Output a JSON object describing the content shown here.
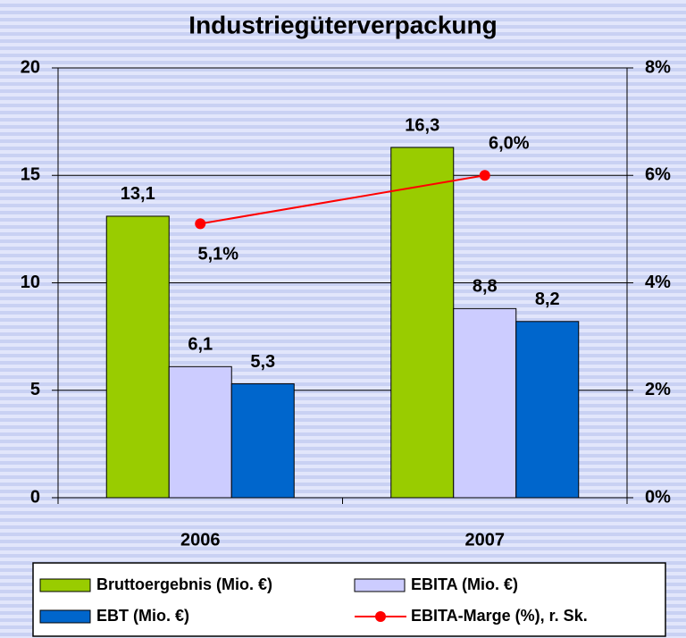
{
  "chart_data": {
    "type": "bar",
    "title": "Industriegüterverpackung",
    "categories": [
      "2006",
      "2007"
    ],
    "series": [
      {
        "name": "Bruttoergebnis (Mio. €)",
        "color": "#99cc00",
        "values": [
          13.1,
          16.3
        ],
        "value_labels": [
          "13,1",
          "16,3"
        ]
      },
      {
        "name": "EBITA (Mio. €)",
        "color": "#ccccff",
        "values": [
          6.1,
          8.8
        ],
        "value_labels": [
          "6,1",
          "8,8"
        ]
      },
      {
        "name": "EBT (Mio. €)",
        "color": "#0066cc",
        "values": [
          5.3,
          8.2
        ],
        "value_labels": [
          "5,3",
          "8,2"
        ]
      },
      {
        "name": "EBITA-Marge (%), r. Sk.",
        "color": "#ff0000",
        "type": "line",
        "axis": "y2",
        "values": [
          5.1,
          6.0
        ],
        "value_labels": [
          "5,1%",
          "6,0%"
        ]
      }
    ],
    "ylim": [
      0,
      20
    ],
    "yticks": [
      0,
      5,
      10,
      15,
      20
    ],
    "y2lim": [
      0,
      8
    ],
    "y2ticks": [
      {
        "value": 0,
        "label": "0%"
      },
      {
        "value": 2,
        "label": "2%"
      },
      {
        "value": 4,
        "label": "4%"
      },
      {
        "value": 6,
        "label": "6%"
      },
      {
        "value": 8,
        "label": "8%"
      }
    ],
    "grid": true,
    "legend": "bottom"
  }
}
